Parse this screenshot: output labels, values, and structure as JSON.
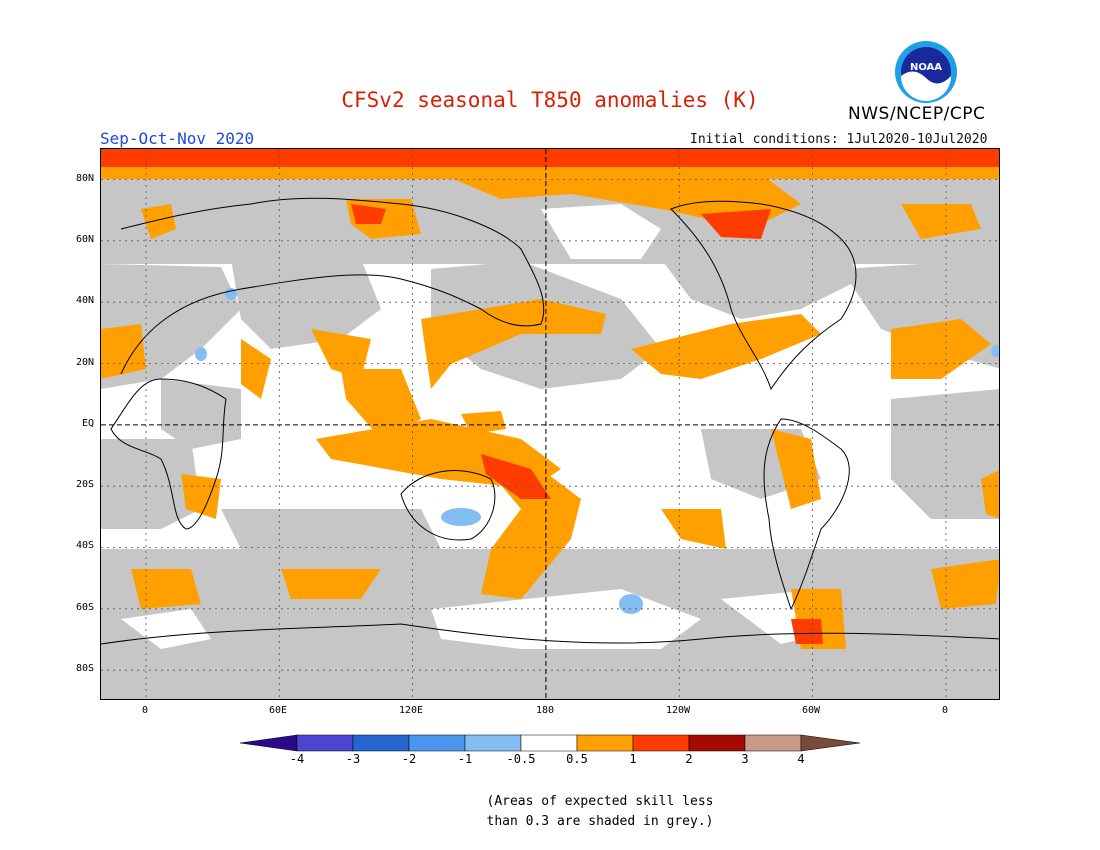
{
  "title": "CFSv2 seasonal T850 anomalies (K)",
  "agency": "NWS/NCEP/CPC",
  "logo_text": "NOAA",
  "season": "Sep-Oct-Nov 2020",
  "initial_conditions": "Initial conditions: 1Jul2020-10Jul2020",
  "lat_labels": [
    "80N",
    "60N",
    "40N",
    "20N",
    "EQ",
    "20S",
    "40S",
    "60S",
    "80S"
  ],
  "lon_labels": [
    "0",
    "60E",
    "120E",
    "180",
    "120W",
    "60W",
    "0"
  ],
  "colorbar": {
    "labels": [
      "-4",
      "-3",
      "-2",
      "-1",
      "-0.5",
      "0.5",
      "1",
      "2",
      "3",
      "4"
    ],
    "colors": [
      "#2a0a8a",
      "#4a46cf",
      "#2565cf",
      "#4a96ef",
      "#84bdf2",
      "#ffffff",
      "#ff9f00",
      "#ff3c00",
      "#a50a00",
      "#c89a88",
      "#7a4a3c"
    ]
  },
  "colors": {
    "grey_skill": "#c6c6c6",
    "warm_1": "#ff9f00",
    "warm_2": "#ff3c00",
    "cool_1": "#84bdf2"
  },
  "footnote_line1": "(Areas of expected skill less",
  "footnote_line2": "than 0.3 are shaded in grey.)"
}
